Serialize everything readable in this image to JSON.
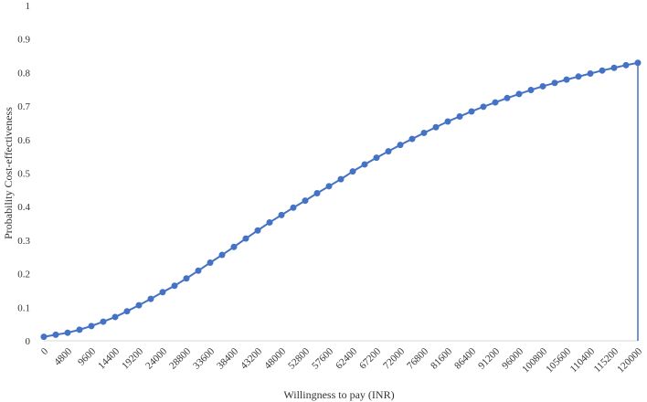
{
  "chart_data": {
    "type": "line",
    "title": "",
    "xlabel": "Willingness to pay (INR)",
    "ylabel": "Probability Cost-effectiveness",
    "ylim": [
      0,
      1
    ],
    "yticks": [
      "0",
      "0.1",
      "0.2",
      "0.3",
      "0.4",
      "0.5",
      "0.6",
      "0.7",
      "0.8",
      "0.9",
      "1"
    ],
    "x_tick_labels": [
      "0",
      "4800",
      "9600",
      "14400",
      "19200",
      "24000",
      "28800",
      "33600",
      "38400",
      "43200",
      "48000",
      "52800",
      "57600",
      "62400",
      "67200",
      "72000",
      "76800",
      "81600",
      "86400",
      "91200",
      "96000",
      "100800",
      "105600",
      "110400",
      "115200",
      "120000"
    ],
    "grid": false,
    "legend": "none",
    "color": "#4472C4",
    "x": [
      0,
      2400,
      4800,
      7200,
      9600,
      12000,
      14400,
      16800,
      19200,
      21600,
      24000,
      26400,
      28800,
      31200,
      33600,
      36000,
      38400,
      40800,
      43200,
      45600,
      48000,
      50400,
      52800,
      55200,
      57600,
      60000,
      62400,
      64800,
      67200,
      69600,
      72000,
      74400,
      76800,
      79200,
      81600,
      84000,
      86400,
      88800,
      91200,
      93600,
      96000,
      98400,
      100800,
      103200,
      105600,
      108000,
      110400,
      112800,
      115200,
      117600,
      120000
    ],
    "series": [
      {
        "values": [
          0.012,
          0.018,
          0.024,
          0.033,
          0.044,
          0.057,
          0.071,
          0.088,
          0.106,
          0.125,
          0.145,
          0.164,
          0.186,
          0.209,
          0.233,
          0.256,
          0.28,
          0.305,
          0.329,
          0.353,
          0.375,
          0.397,
          0.418,
          0.44,
          0.461,
          0.482,
          0.505,
          0.526,
          0.546,
          0.565,
          0.584,
          0.602,
          0.62,
          0.637,
          0.654,
          0.669,
          0.684,
          0.698,
          0.711,
          0.724,
          0.736,
          0.748,
          0.759,
          0.769,
          0.779,
          0.788,
          0.797,
          0.806,
          0.814,
          0.822,
          0.829
        ]
      }
    ]
  }
}
